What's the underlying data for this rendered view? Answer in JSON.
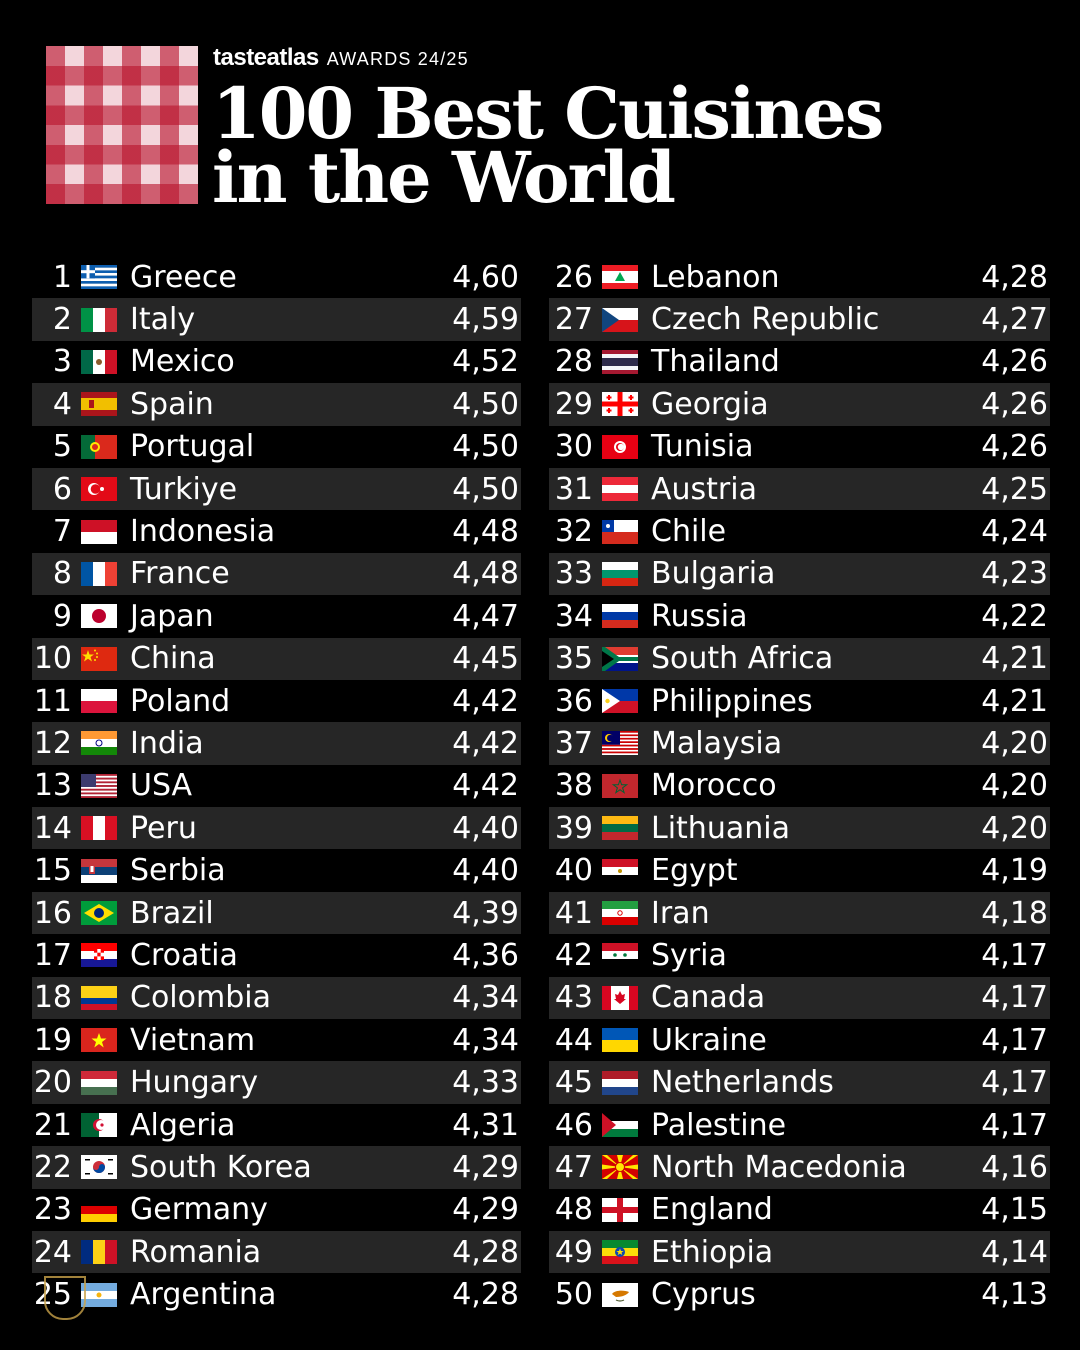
{
  "header": {
    "brand": "tasteatlas",
    "awards": "AWARDS 24/25",
    "title_line1": "100 Best Cuisines",
    "title_line2": "in the World"
  },
  "colors": {
    "background": "#000000",
    "row_stripe": "#262626",
    "text": "#ffffff",
    "logo_red": "#b9142d",
    "logo_pink": "#f3d6dc"
  },
  "chart_data": {
    "type": "table",
    "columns": [
      "rank",
      "country",
      "score"
    ],
    "rows": [
      {
        "rank": "1",
        "country": "Greece",
        "score": "4,60",
        "flag": "greece"
      },
      {
        "rank": "2",
        "country": "Italy",
        "score": "4,59",
        "flag": "italy"
      },
      {
        "rank": "3",
        "country": "Mexico",
        "score": "4,52",
        "flag": "mexico"
      },
      {
        "rank": "4",
        "country": "Spain",
        "score": "4,50",
        "flag": "spain"
      },
      {
        "rank": "5",
        "country": "Portugal",
        "score": "4,50",
        "flag": "portugal"
      },
      {
        "rank": "6",
        "country": "Turkiye",
        "score": "4,50",
        "flag": "turkiye"
      },
      {
        "rank": "7",
        "country": "Indonesia",
        "score": "4,48",
        "flag": "indonesia"
      },
      {
        "rank": "8",
        "country": "France",
        "score": "4,48",
        "flag": "france"
      },
      {
        "rank": "9",
        "country": "Japan",
        "score": "4,47",
        "flag": "japan"
      },
      {
        "rank": "10",
        "country": "China",
        "score": "4,45",
        "flag": "china"
      },
      {
        "rank": "11",
        "country": "Poland",
        "score": "4,42",
        "flag": "poland"
      },
      {
        "rank": "12",
        "country": "India",
        "score": "4,42",
        "flag": "india"
      },
      {
        "rank": "13",
        "country": "USA",
        "score": "4,42",
        "flag": "usa"
      },
      {
        "rank": "14",
        "country": "Peru",
        "score": "4,40",
        "flag": "peru"
      },
      {
        "rank": "15",
        "country": "Serbia",
        "score": "4,40",
        "flag": "serbia"
      },
      {
        "rank": "16",
        "country": "Brazil",
        "score": "4,39",
        "flag": "brazil"
      },
      {
        "rank": "17",
        "country": "Croatia",
        "score": "4,36",
        "flag": "croatia"
      },
      {
        "rank": "18",
        "country": "Colombia",
        "score": "4,34",
        "flag": "colombia"
      },
      {
        "rank": "19",
        "country": "Vietnam",
        "score": "4,34",
        "flag": "vietnam"
      },
      {
        "rank": "20",
        "country": "Hungary",
        "score": "4,33",
        "flag": "hungary"
      },
      {
        "rank": "21",
        "country": "Algeria",
        "score": "4,31",
        "flag": "algeria"
      },
      {
        "rank": "22",
        "country": "South Korea",
        "score": "4,29",
        "flag": "south-korea"
      },
      {
        "rank": "23",
        "country": "Germany",
        "score": "4,29",
        "flag": "germany"
      },
      {
        "rank": "24",
        "country": "Romania",
        "score": "4,28",
        "flag": "romania"
      },
      {
        "rank": "25",
        "country": "Argentina",
        "score": "4,28",
        "flag": "argentina"
      },
      {
        "rank": "26",
        "country": "Lebanon",
        "score": "4,28",
        "flag": "lebanon"
      },
      {
        "rank": "27",
        "country": "Czech Republic",
        "score": "4,27",
        "flag": "czech"
      },
      {
        "rank": "28",
        "country": "Thailand",
        "score": "4,26",
        "flag": "thailand"
      },
      {
        "rank": "29",
        "country": "Georgia",
        "score": "4,26",
        "flag": "georgia"
      },
      {
        "rank": "30",
        "country": "Tunisia",
        "score": "4,26",
        "flag": "tunisia"
      },
      {
        "rank": "31",
        "country": "Austria",
        "score": "4,25",
        "flag": "austria"
      },
      {
        "rank": "32",
        "country": "Chile",
        "score": "4,24",
        "flag": "chile"
      },
      {
        "rank": "33",
        "country": "Bulgaria",
        "score": "4,23",
        "flag": "bulgaria"
      },
      {
        "rank": "34",
        "country": "Russia",
        "score": "4,22",
        "flag": "russia"
      },
      {
        "rank": "35",
        "country": "South Africa",
        "score": "4,21",
        "flag": "south-africa"
      },
      {
        "rank": "36",
        "country": "Philippines",
        "score": "4,21",
        "flag": "philippines"
      },
      {
        "rank": "37",
        "country": "Malaysia",
        "score": "4,20",
        "flag": "malaysia"
      },
      {
        "rank": "38",
        "country": "Morocco",
        "score": "4,20",
        "flag": "morocco"
      },
      {
        "rank": "39",
        "country": "Lithuania",
        "score": "4,20",
        "flag": "lithuania"
      },
      {
        "rank": "40",
        "country": "Egypt",
        "score": "4,19",
        "flag": "egypt"
      },
      {
        "rank": "41",
        "country": "Iran",
        "score": "4,18",
        "flag": "iran"
      },
      {
        "rank": "42",
        "country": "Syria",
        "score": "4,17",
        "flag": "syria"
      },
      {
        "rank": "43",
        "country": "Canada",
        "score": "4,17",
        "flag": "canada"
      },
      {
        "rank": "44",
        "country": "Ukraine",
        "score": "4,17",
        "flag": "ukraine"
      },
      {
        "rank": "45",
        "country": "Netherlands",
        "score": "4,17",
        "flag": "netherlands"
      },
      {
        "rank": "46",
        "country": "Palestine",
        "score": "4,17",
        "flag": "palestine"
      },
      {
        "rank": "47",
        "country": "North Macedonia",
        "score": "4,16",
        "flag": "north-macedonia"
      },
      {
        "rank": "48",
        "country": "England",
        "score": "4,15",
        "flag": "england"
      },
      {
        "rank": "49",
        "country": "Ethiopia",
        "score": "4,14",
        "flag": "ethiopia"
      },
      {
        "rank": "50",
        "country": "Cyprus",
        "score": "4,13",
        "flag": "cyprus"
      }
    ]
  }
}
